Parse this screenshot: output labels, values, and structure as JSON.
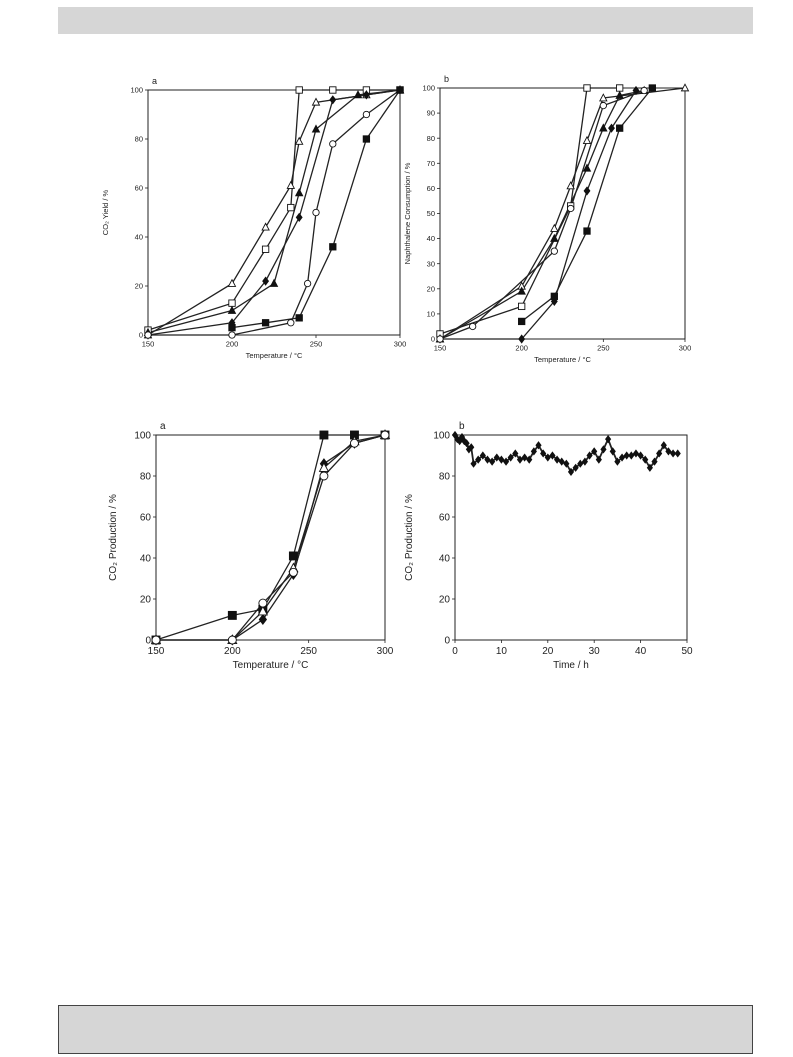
{
  "chart_data": [
    {
      "type": "line",
      "panel_label": "a",
      "xlabel": "Temperature / °C",
      "ylabel": "CO₂ Yield / %",
      "xlim": [
        150,
        300
      ],
      "ylim": [
        0,
        100
      ],
      "xticks": [
        150,
        200,
        250,
        300
      ],
      "yticks": [
        0,
        20,
        40,
        60,
        80,
        100
      ],
      "grid": false,
      "series": [
        {
          "marker": "square-open",
          "x": [
            150,
            200,
            220,
            235,
            240,
            260,
            280,
            300
          ],
          "y": [
            2,
            13,
            35,
            52,
            100,
            100,
            100,
            100
          ]
        },
        {
          "marker": "triangle-open",
          "x": [
            150,
            200,
            220,
            235,
            240,
            250,
            280,
            300
          ],
          "y": [
            0,
            21,
            44,
            61,
            79,
            95,
            98,
            100
          ]
        },
        {
          "marker": "triangle-filled",
          "x": [
            150,
            200,
            225,
            240,
            250,
            275,
            300
          ],
          "y": [
            1,
            10,
            21,
            58,
            84,
            98,
            100
          ]
        },
        {
          "marker": "diamond-filled",
          "x": [
            150,
            200,
            220,
            240,
            260,
            280,
            300
          ],
          "y": [
            0,
            5,
            22,
            48,
            96,
            98,
            100
          ]
        },
        {
          "marker": "circle-open",
          "x": [
            150,
            200,
            235,
            245,
            250,
            260,
            280,
            300
          ],
          "y": [
            0,
            0,
            5,
            21,
            50,
            78,
            90,
            100
          ]
        },
        {
          "marker": "square-filled",
          "x": [
            200,
            220,
            240,
            260,
            280,
            300
          ],
          "y": [
            3,
            5,
            7,
            36,
            80,
            100
          ]
        }
      ]
    },
    {
      "type": "line",
      "panel_label": "b",
      "xlabel": "Temperature / °C",
      "ylabel": "Naphthalene Consumption / %",
      "xlim": [
        150,
        300
      ],
      "ylim": [
        0,
        100
      ],
      "xticks": [
        150,
        200,
        250,
        300
      ],
      "yticks": [
        0,
        10,
        20,
        30,
        40,
        50,
        60,
        70,
        80,
        90,
        100
      ],
      "grid": false,
      "series": [
        {
          "marker": "square-open",
          "x": [
            150,
            200,
            230,
            240,
            260
          ],
          "y": [
            2,
            13,
            53,
            100,
            100
          ]
        },
        {
          "marker": "triangle-open",
          "x": [
            150,
            200,
            220,
            230,
            240,
            250,
            300
          ],
          "y": [
            0,
            21,
            44,
            61,
            79,
            96,
            100
          ]
        },
        {
          "marker": "triangle-filled",
          "x": [
            150,
            200,
            220,
            240,
            250,
            260,
            275
          ],
          "y": [
            0,
            19,
            40,
            68,
            84,
            97,
            99
          ]
        },
        {
          "marker": "diamond-filled",
          "x": [
            150,
            200,
            220,
            240,
            255,
            270
          ],
          "y": [
            0,
            0,
            15,
            59,
            84,
            99
          ]
        },
        {
          "marker": "circle-open",
          "x": [
            150,
            170,
            220,
            230,
            250,
            275
          ],
          "y": [
            0,
            5,
            35,
            52,
            93,
            99
          ]
        },
        {
          "marker": "square-filled",
          "x": [
            200,
            220,
            240,
            260,
            280
          ],
          "y": [
            7,
            17,
            43,
            84,
            100
          ]
        }
      ]
    },
    {
      "type": "line",
      "panel_label": "a",
      "xlabel": "Temperature / °C",
      "ylabel": "CO₂ Production / %",
      "xlim": [
        150,
        300
      ],
      "ylim": [
        0,
        100
      ],
      "xticks": [
        150,
        200,
        250,
        300
      ],
      "yticks": [
        0,
        20,
        40,
        60,
        80,
        100
      ],
      "grid": false,
      "series": [
        {
          "marker": "square-filled",
          "x": [
            150,
            200,
            220,
            240,
            260,
            280,
            300
          ],
          "y": [
            0,
            12,
            15,
            41,
            100,
            100,
            100
          ]
        },
        {
          "marker": "diamond-filled",
          "x": [
            150,
            200,
            220,
            240,
            260,
            280,
            300
          ],
          "y": [
            0,
            0,
            10,
            32,
            86,
            96,
            100
          ]
        },
        {
          "marker": "triangle-open",
          "x": [
            150,
            200,
            220,
            240,
            260,
            280,
            300
          ],
          "y": [
            0,
            0,
            14,
            35,
            84,
            97,
            100
          ]
        },
        {
          "marker": "circle-open",
          "x": [
            150,
            200,
            220,
            240,
            260,
            280,
            300
          ],
          "y": [
            0,
            0,
            18,
            33,
            80,
            96,
            100
          ]
        }
      ]
    },
    {
      "type": "line",
      "panel_label": "b",
      "xlabel": "Time / h",
      "ylabel": "CO₂ Production / %",
      "xlim": [
        0,
        50
      ],
      "ylim": [
        0,
        100
      ],
      "xticks": [
        0,
        10,
        20,
        30,
        40,
        50
      ],
      "yticks": [
        0,
        20,
        40,
        60,
        80,
        100
      ],
      "grid": false,
      "series": [
        {
          "marker": "diamond-filled",
          "x": [
            0,
            0.5,
            1,
            1.5,
            2,
            2.5,
            3,
            3.5,
            4,
            5,
            6,
            7,
            8,
            9,
            10,
            11,
            12,
            13,
            14,
            15,
            16,
            17,
            18,
            19,
            20,
            21,
            22,
            23,
            24,
            25,
            26,
            27,
            28,
            29,
            30,
            31,
            32,
            33,
            34,
            35,
            36,
            37,
            38,
            39,
            40,
            41,
            42,
            43,
            44,
            45,
            46,
            47,
            48
          ],
          "y": [
            100,
            98,
            97,
            99,
            97,
            96,
            93,
            94,
            86,
            88,
            90,
            88,
            87,
            89,
            88,
            87,
            89,
            91,
            88,
            89,
            88,
            92,
            95,
            91,
            89,
            90,
            88,
            87,
            86,
            82,
            84,
            86,
            87,
            90,
            92,
            88,
            93,
            98,
            92,
            87,
            89,
            90,
            90,
            91,
            90,
            88,
            84,
            87,
            91,
            95,
            92,
            91,
            91
          ]
        }
      ]
    }
  ]
}
